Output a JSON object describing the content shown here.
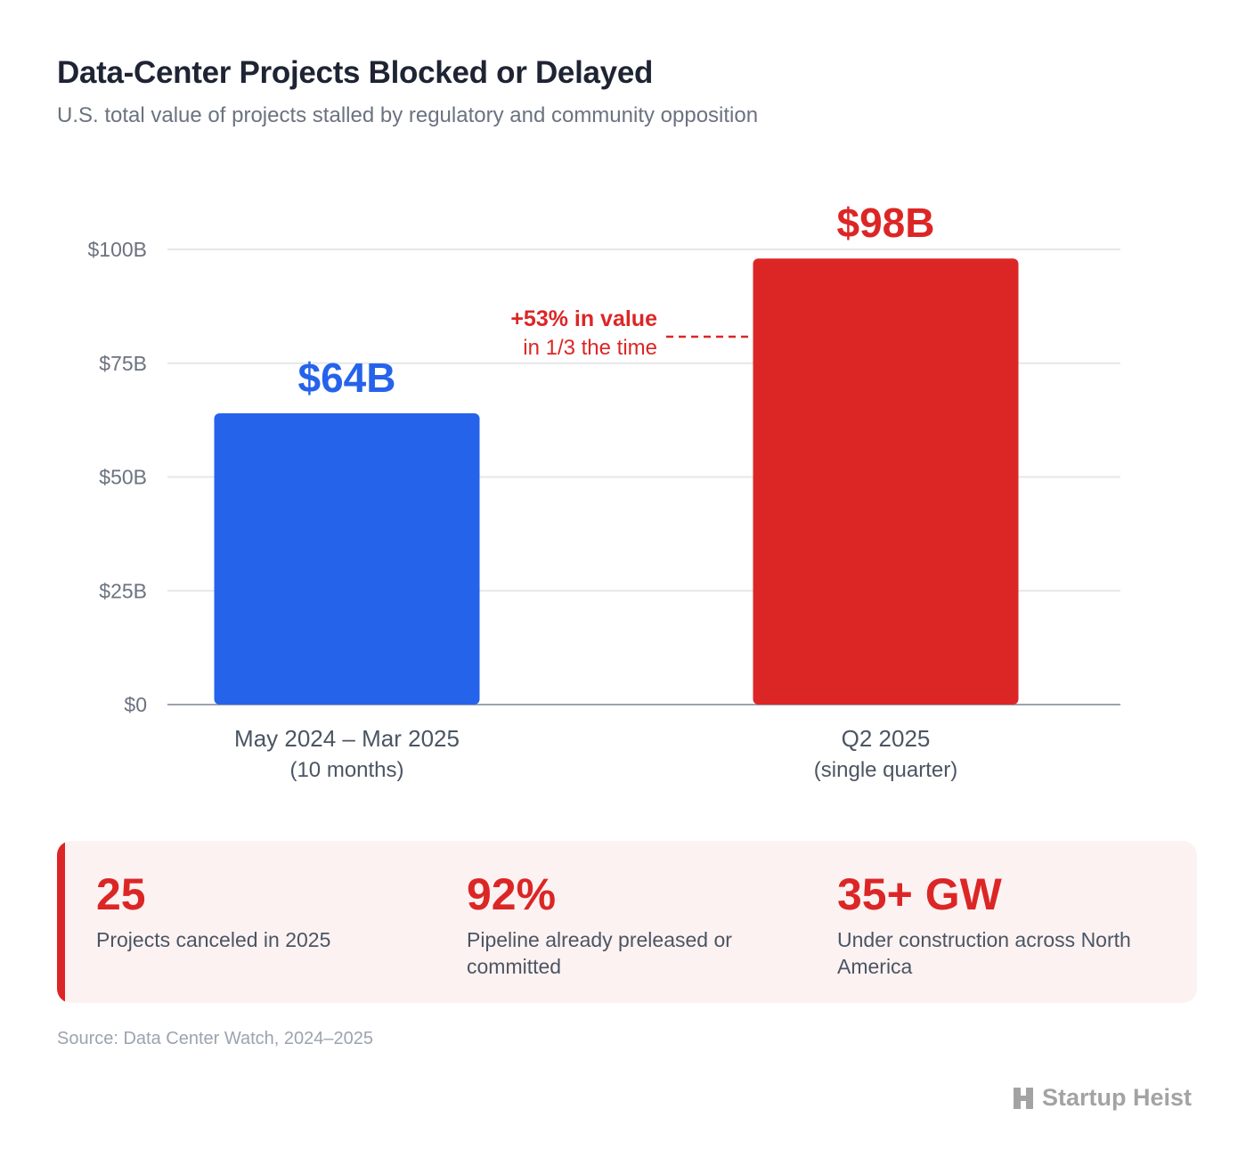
{
  "title": "Data-Center Projects Blocked or Delayed",
  "subtitle": "U.S. total value of projects stalled by regulatory and community opposition",
  "chart_data": {
    "type": "bar",
    "categories": [
      [
        "May 2024 – Mar 2025",
        "(10 months)"
      ],
      [
        "Q2 2025",
        "(single quarter)"
      ]
    ],
    "values": [
      64,
      98
    ],
    "value_labels": [
      "$64B",
      "$98B"
    ],
    "colors": [
      "#2563eb",
      "#dc2626"
    ],
    "yticks": [
      0,
      25,
      50,
      75,
      100
    ],
    "ytick_labels": [
      "$0",
      "$25B",
      "$50B",
      "$75B",
      "$100B"
    ],
    "ylim": [
      0,
      100
    ],
    "grid": true,
    "annotation": {
      "line1": "+53% in value",
      "line2": "in 1/3 the time",
      "color": "#dc2626"
    }
  },
  "stats": [
    {
      "value": "25",
      "label": "Projects canceled in 2025"
    },
    {
      "value": "92%",
      "label": "Pipeline already preleased or committed"
    },
    {
      "value": "35+ GW",
      "label": "Under construction across North America"
    }
  ],
  "source": "Source: Data Center Watch, 2024–2025",
  "brand": {
    "name": "Startup Heist",
    "icon": "building-h-icon"
  }
}
